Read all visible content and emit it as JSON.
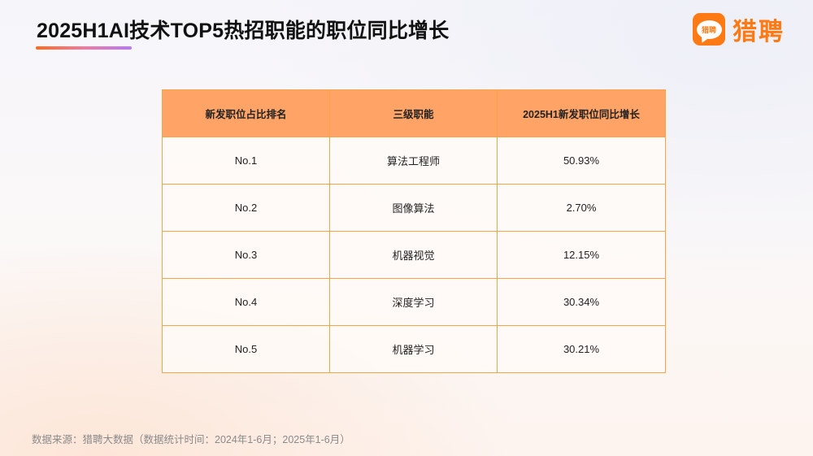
{
  "header": {
    "title": "2025H1AI技术TOP5热招职能的职位同比增长",
    "underline_gradient": [
      "#ff6a1a",
      "#f07aa0",
      "#b878f8"
    ]
  },
  "logo": {
    "badge_text": "猎聘",
    "brand_text": "猎聘",
    "icon": "speech-bubble-logo-icon",
    "color": "#ff7a14"
  },
  "table": {
    "header_color": "#ffa466",
    "border_color": "#f7a445",
    "columns": [
      "新发职位占比排名",
      "三级职能",
      "2025H1新发职位同比增长"
    ],
    "rows": [
      {
        "rank": "No.1",
        "function": "算法工程师",
        "growth": "50.93%"
      },
      {
        "rank": "No.2",
        "function": "图像算法",
        "growth": "2.70%"
      },
      {
        "rank": "No.3",
        "function": "机器视觉",
        "growth": "12.15%"
      },
      {
        "rank": "No.4",
        "function": "深度学习",
        "growth": "30.34%"
      },
      {
        "rank": "No.5",
        "function": "机器学习",
        "growth": "30.21%"
      }
    ]
  },
  "footer": {
    "source": "数据来源：猎聘大数据（数据统计时间：2024年1-6月；2025年1-6月）"
  },
  "chart_data": {
    "type": "table",
    "title": "2025H1AI技术TOP5热招职能的职位同比增长",
    "columns": [
      "新发职位占比排名",
      "三级职能",
      "2025H1新发职位同比增长"
    ],
    "rows": [
      [
        "No.1",
        "算法工程师",
        "50.93%"
      ],
      [
        "No.2",
        "图像算法",
        "2.70%"
      ],
      [
        "No.3",
        "机器视觉",
        "12.15%"
      ],
      [
        "No.4",
        "深度学习",
        "30.34%"
      ],
      [
        "No.5",
        "机器学习",
        "30.21%"
      ]
    ],
    "categories": [
      "算法工程师",
      "图像算法",
      "机器视觉",
      "深度学习",
      "机器学习"
    ],
    "values": [
      50.93,
      2.7,
      12.15,
      30.34,
      30.21
    ],
    "unit": "%",
    "source": "数据来源：猎聘大数据（数据统计时间：2024年1-6月；2025年1-6月）"
  }
}
